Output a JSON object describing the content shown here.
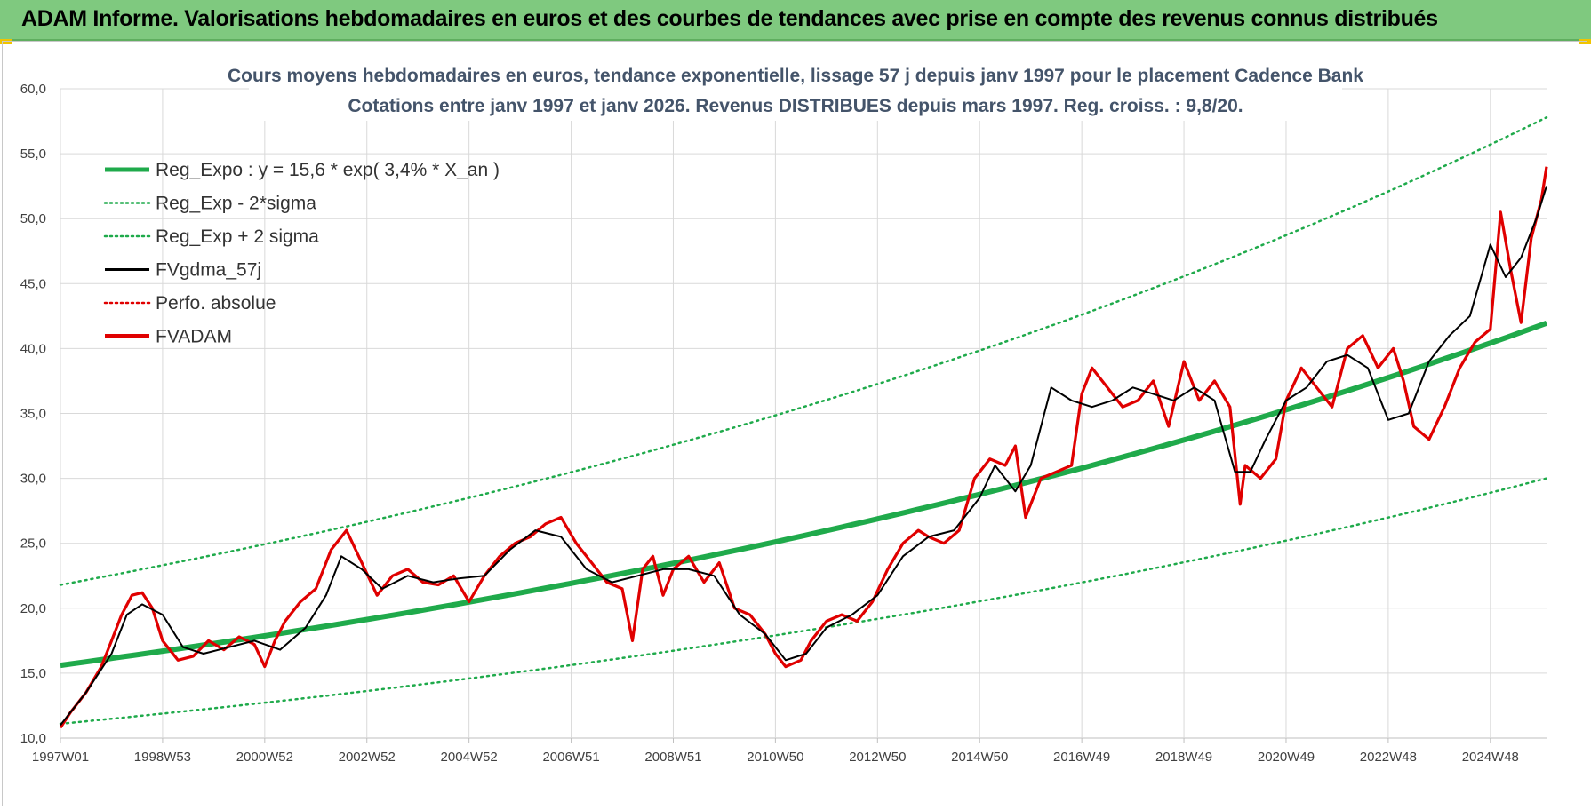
{
  "banner": {
    "title": "ADAM Informe. Valorisations hebdomadaires en euros et des courbes de tendances avec prise en compte des revenus connus distribués",
    "bg_color": "#7fc97f"
  },
  "chart_data": {
    "type": "line",
    "title_line1": "Cours moyens hebdomadaires en euros, tendance exponentielle, lissage 57 j depuis janv 1997  pour le placement Cadence Bank",
    "title_line2": "Cotations entre janv 1997 et janv 2026. Revenus DISTRIBUES depuis mars 1997.  Reg. croiss. : 9,8/20.",
    "ylim": [
      10,
      60
    ],
    "y_ticks": [
      "10,0",
      "15,0",
      "20,0",
      "25,0",
      "30,0",
      "35,0",
      "40,0",
      "45,0",
      "50,0",
      "55,0",
      "60,0"
    ],
    "y_tick_values": [
      10,
      15,
      20,
      25,
      30,
      35,
      40,
      45,
      50,
      55,
      60
    ],
    "xlim": [
      1997.0,
      2026.1
    ],
    "x_ticks": [
      "1997W01",
      "1998W53",
      "2000W52",
      "2002W52",
      "2004W52",
      "2006W51",
      "2008W51",
      "2010W50",
      "2012W50",
      "2014W50",
      "2016W49",
      "2018W49",
      "2020W49",
      "2022W48",
      "2024W48"
    ],
    "x_tick_years": [
      1997.0,
      1999.0,
      2001.0,
      2003.0,
      2005.0,
      2007.0,
      2009.0,
      2011.0,
      2013.0,
      2015.0,
      2017.0,
      2019.0,
      2021.0,
      2023.0,
      2025.0
    ],
    "grid": true,
    "legend_position": "top-left",
    "legend": [
      {
        "label": "Reg_Expo : y = 15,6 * exp( 3,4% *  X_an )",
        "color": "#1faa4b",
        "style": "solid-thick"
      },
      {
        "label": "Reg_Exp - 2*sigma",
        "color": "#1faa4b",
        "style": "dotted"
      },
      {
        "label": "Reg_Exp + 2 sigma",
        "color": "#1faa4b",
        "style": "dotted"
      },
      {
        "label": "FVgdma_57j",
        "color": "#000000",
        "style": "solid"
      },
      {
        "label": "Perfo. absolue",
        "color": "#e00000",
        "style": "dotted"
      },
      {
        "label": "FVADAM",
        "color": "#e00000",
        "style": "solid-thick"
      }
    ],
    "regression": {
      "a": 15.6,
      "rate": 0.034,
      "start_year": 1997.0
    },
    "band_lower": {
      "start": 11.1,
      "end": 30.0
    },
    "band_upper": {
      "start": 21.8,
      "end": 57.8
    },
    "series": [
      {
        "name": "FVADAM",
        "x": [
          1997.0,
          1997.2,
          1997.5,
          1997.8,
          1998.0,
          1998.2,
          1998.4,
          1998.6,
          1998.8,
          1999.0,
          1999.3,
          1999.6,
          1999.9,
          2000.2,
          2000.5,
          2000.8,
          2001.0,
          2001.2,
          2001.4,
          2001.7,
          2002.0,
          2002.3,
          2002.6,
          2002.9,
          2003.2,
          2003.5,
          2003.8,
          2004.1,
          2004.4,
          2004.7,
          2005.0,
          2005.3,
          2005.6,
          2005.9,
          2006.2,
          2006.5,
          2006.8,
          2007.1,
          2007.4,
          2007.7,
          2008.0,
          2008.2,
          2008.4,
          2008.6,
          2008.8,
          2009.0,
          2009.3,
          2009.6,
          2009.9,
          2010.2,
          2010.5,
          2010.8,
          2011.0,
          2011.2,
          2011.5,
          2011.7,
          2012.0,
          2012.3,
          2012.6,
          2012.9,
          2013.2,
          2013.5,
          2013.8,
          2014.0,
          2014.3,
          2014.6,
          2014.9,
          2015.2,
          2015.5,
          2015.7,
          2015.9,
          2016.2,
          2016.5,
          2016.8,
          2017.0,
          2017.2,
          2017.5,
          2017.8,
          2018.1,
          2018.4,
          2018.7,
          2019.0,
          2019.3,
          2019.6,
          2019.9,
          2020.1,
          2020.2,
          2020.5,
          2020.8,
          2021.0,
          2021.3,
          2021.6,
          2021.9,
          2022.2,
          2022.5,
          2022.8,
          2023.1,
          2023.3,
          2023.5,
          2023.8,
          2024.1,
          2024.4,
          2024.7,
          2025.0,
          2025.2,
          2025.4,
          2025.6,
          2025.8,
          2026.0,
          2026.1
        ],
        "y": [
          10.8,
          12.0,
          13.5,
          15.5,
          17.5,
          19.5,
          21.0,
          21.2,
          20.0,
          17.5,
          16.0,
          16.3,
          17.5,
          16.8,
          17.8,
          17.2,
          15.5,
          17.5,
          19.0,
          20.5,
          21.5,
          24.5,
          26.0,
          23.5,
          21.0,
          22.5,
          23.0,
          22.0,
          21.8,
          22.5,
          20.5,
          22.5,
          24.0,
          25.0,
          25.5,
          26.5,
          27.0,
          25.0,
          23.5,
          22.0,
          21.5,
          17.5,
          23.0,
          24.0,
          21.0,
          23.0,
          24.0,
          22.0,
          23.5,
          20.0,
          19.5,
          18.0,
          16.5,
          15.5,
          16.0,
          17.5,
          19.0,
          19.5,
          19.0,
          20.5,
          23.0,
          25.0,
          26.0,
          25.5,
          25.0,
          26.0,
          30.0,
          31.5,
          31.0,
          32.5,
          27.0,
          30.0,
          30.5,
          31.0,
          36.5,
          38.5,
          37.0,
          35.5,
          36.0,
          37.5,
          34.0,
          39.0,
          36.0,
          37.5,
          35.5,
          28.0,
          31.0,
          30.0,
          31.5,
          36.0,
          38.5,
          37.0,
          35.5,
          40.0,
          41.0,
          38.5,
          40.0,
          37.5,
          34.0,
          33.0,
          35.5,
          38.5,
          40.5,
          41.5,
          50.5,
          46.0,
          42.0,
          48.5,
          51.5,
          54.0
        ]
      },
      {
        "name": "FVgdma_57j",
        "x": [
          1997.0,
          1997.5,
          1998.0,
          1998.3,
          1998.6,
          1999.0,
          1999.4,
          1999.8,
          2000.3,
          2000.8,
          2001.3,
          2001.8,
          2002.2,
          2002.5,
          2002.9,
          2003.3,
          2003.8,
          2004.3,
          2004.8,
          2005.3,
          2005.8,
          2006.3,
          2006.8,
          2007.3,
          2007.8,
          2008.3,
          2008.8,
          2009.3,
          2009.8,
          2010.3,
          2010.8,
          2011.2,
          2011.6,
          2012.0,
          2012.5,
          2013.0,
          2013.5,
          2014.0,
          2014.5,
          2015.0,
          2015.3,
          2015.7,
          2016.0,
          2016.4,
          2016.8,
          2017.2,
          2017.6,
          2018.0,
          2018.4,
          2018.8,
          2019.2,
          2019.6,
          2020.0,
          2020.3,
          2020.6,
          2021.0,
          2021.4,
          2021.8,
          2022.2,
          2022.6,
          2023.0,
          2023.4,
          2023.8,
          2024.2,
          2024.6,
          2025.0,
          2025.3,
          2025.6,
          2025.9,
          2026.1
        ],
        "y": [
          11.0,
          13.5,
          16.5,
          19.5,
          20.3,
          19.5,
          17.0,
          16.5,
          17.0,
          17.5,
          16.8,
          18.5,
          21.0,
          24.0,
          23.0,
          21.5,
          22.5,
          22.0,
          22.3,
          22.5,
          24.5,
          26.0,
          25.5,
          23.0,
          22.0,
          22.5,
          23.0,
          23.0,
          22.5,
          19.5,
          18.0,
          16.0,
          16.5,
          18.5,
          19.5,
          21.0,
          24.0,
          25.5,
          26.0,
          28.5,
          31.0,
          29.0,
          31.0,
          37.0,
          36.0,
          35.5,
          36.0,
          37.0,
          36.5,
          36.0,
          37.0,
          36.0,
          30.5,
          30.5,
          33.0,
          36.0,
          37.0,
          39.0,
          39.5,
          38.5,
          34.5,
          35.0,
          39.0,
          41.0,
          42.5,
          48.0,
          45.5,
          47.0,
          50.0,
          52.5
        ]
      }
    ]
  }
}
